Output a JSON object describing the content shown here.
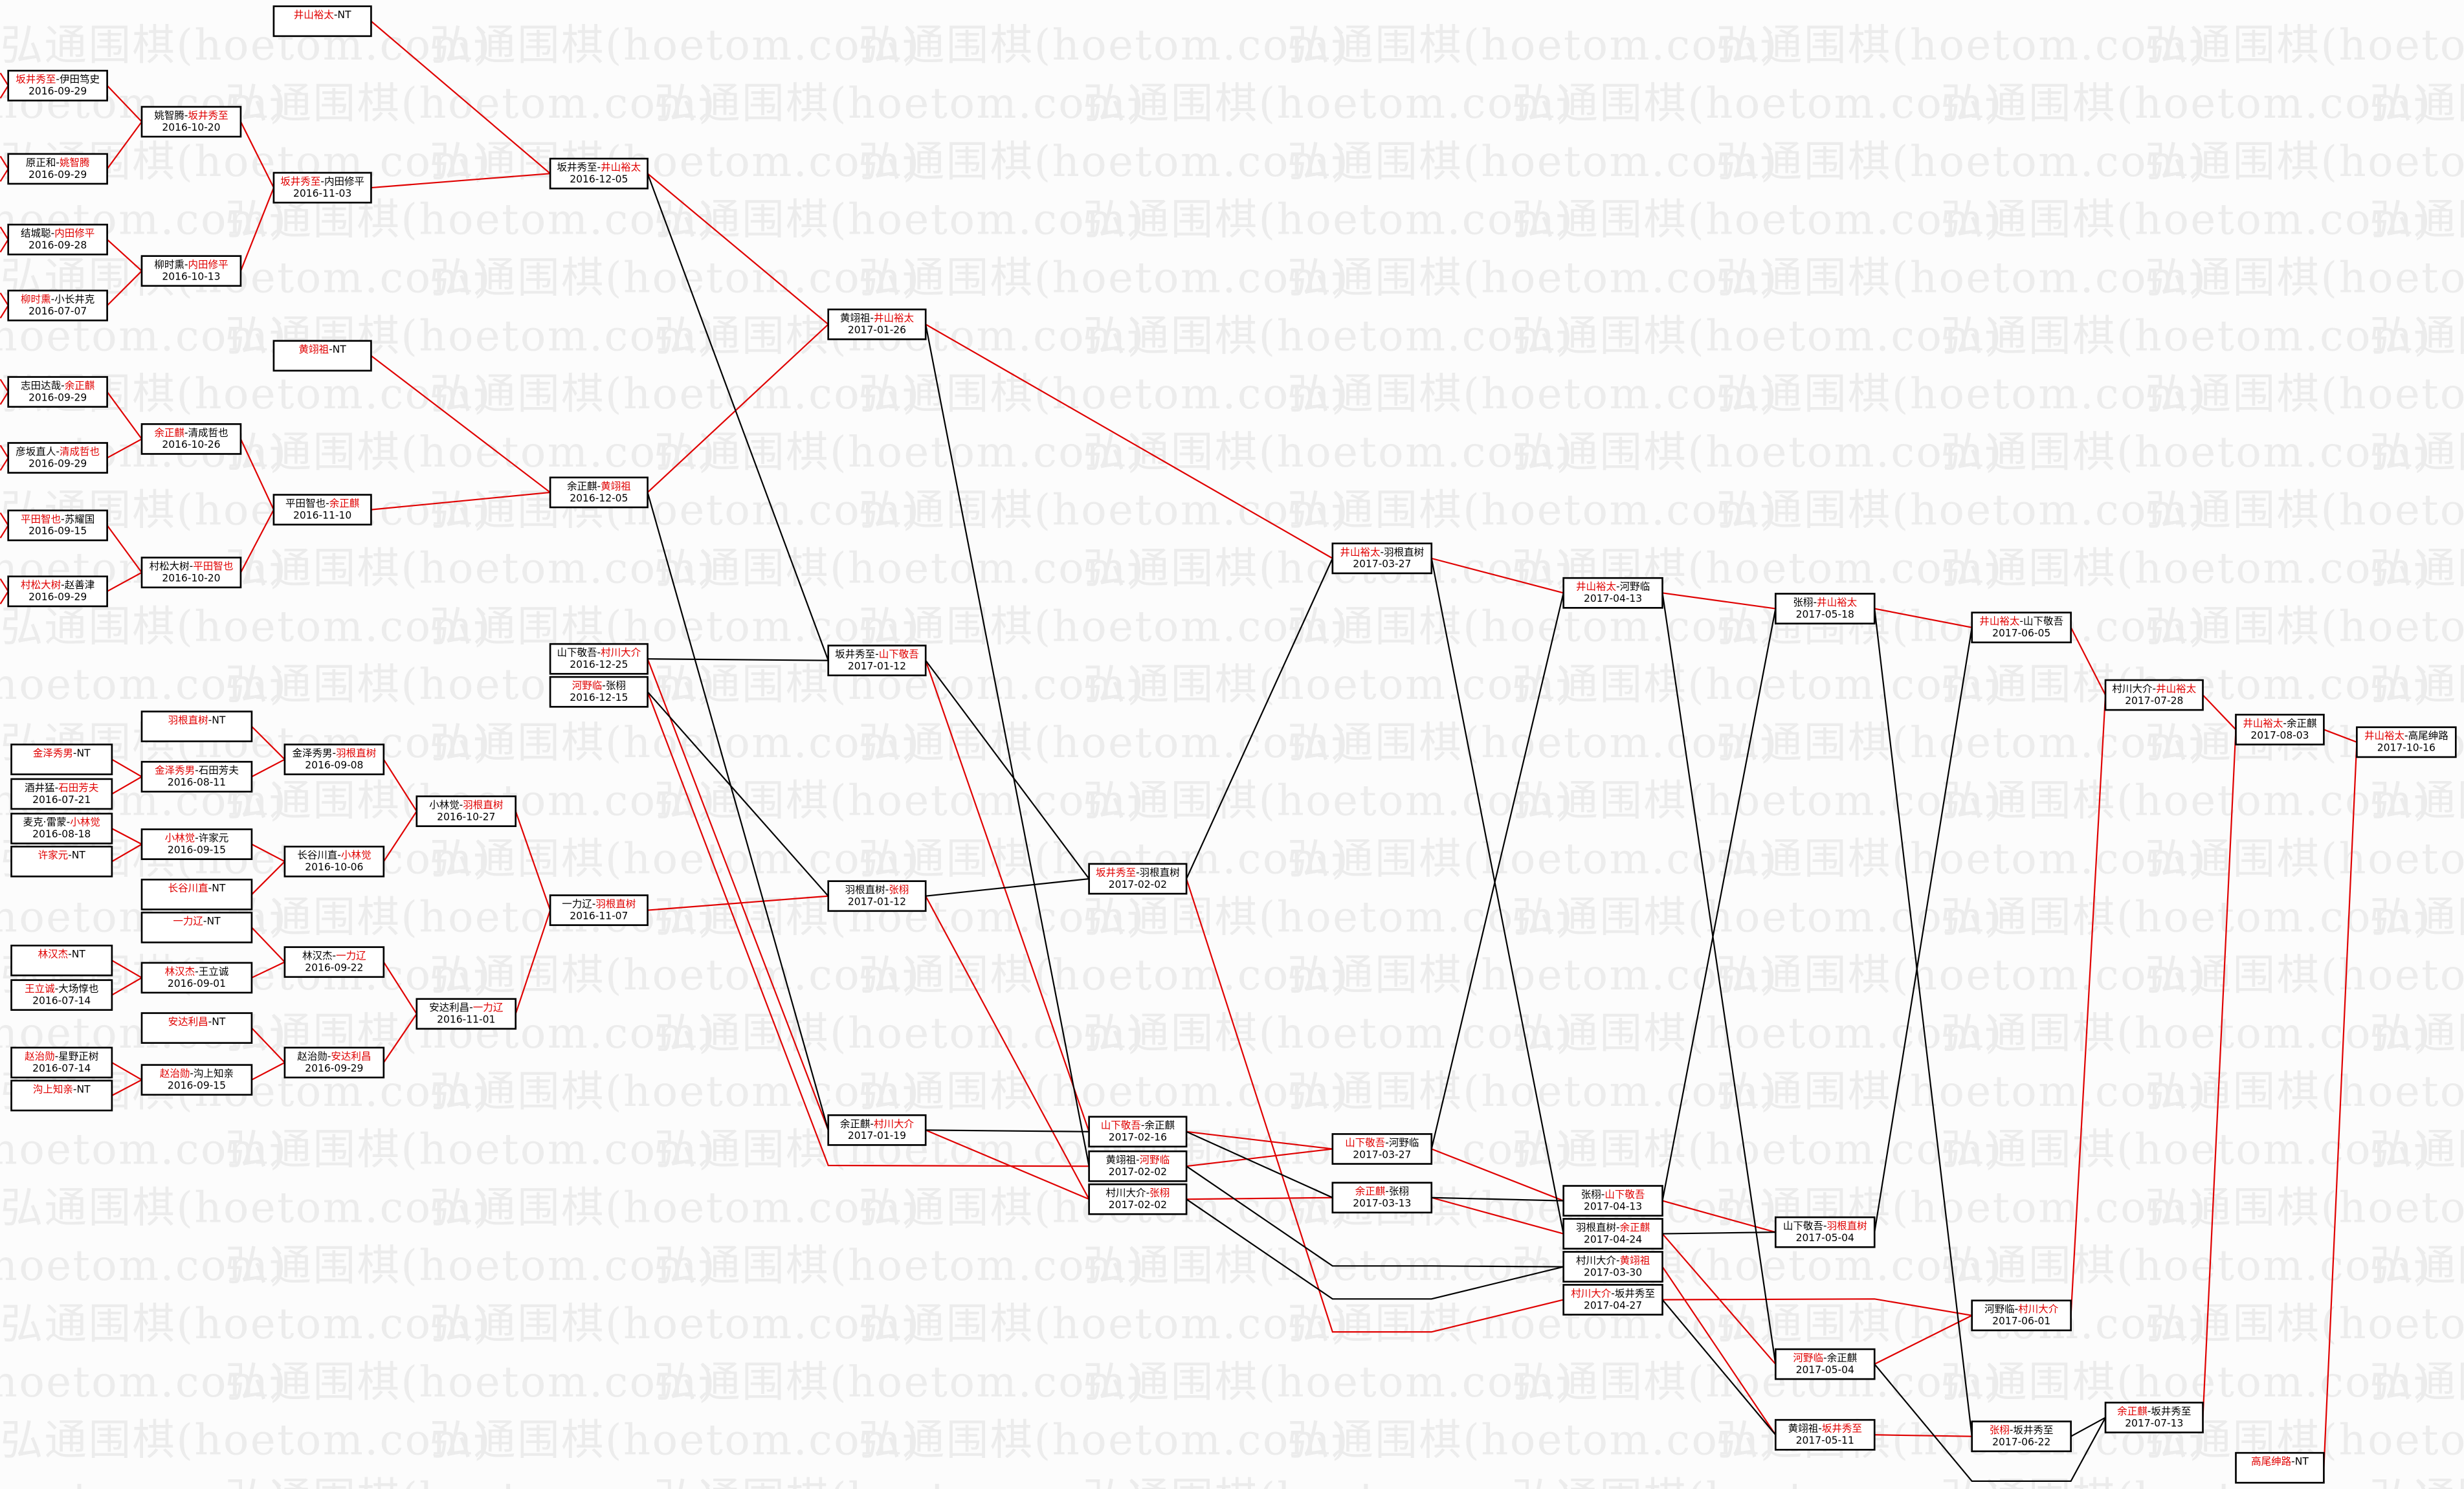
{
  "watermark": "弘通围棋(hoetom.com)",
  "separator": "-",
  "colors": {
    "winner": "#e00000",
    "winner_line": "#e00000",
    "loser_line": "#000000",
    "box_border": "#000000"
  },
  "nodes": [
    {
      "id": "A1",
      "p1": "坂井秀至",
      "p2": "伊田笃史",
      "winner": 1,
      "date": "2016-09-29"
    },
    {
      "id": "A2",
      "p1": "原正和",
      "p2": "姚智腾",
      "winner": 2,
      "date": "2016-09-29"
    },
    {
      "id": "A3",
      "p1": "结城聪",
      "p2": "内田修平",
      "winner": 2,
      "date": "2016-09-28"
    },
    {
      "id": "A4",
      "p1": "柳时熏",
      "p2": "小长井克",
      "winner": 1,
      "date": "2016-07-07"
    },
    {
      "id": "A5",
      "p1": "志田达哉",
      "p2": "余正麒",
      "winner": 2,
      "date": "2016-09-29"
    },
    {
      "id": "A6",
      "p1": "彦坂直人",
      "p2": "清成哲也",
      "winner": 2,
      "date": "2016-09-29"
    },
    {
      "id": "A7",
      "p1": "平田智也",
      "p2": "苏耀国",
      "winner": 1,
      "date": "2016-09-15"
    },
    {
      "id": "A8",
      "p1": "村松大树",
      "p2": "赵善津",
      "winner": 1,
      "date": "2016-09-29"
    },
    {
      "id": "B1",
      "p1": "金泽秀男",
      "p2": "NT",
      "winner": 1,
      "date": ""
    },
    {
      "id": "B2",
      "p1": "酒井猛",
      "p2": "石田芳夫",
      "winner": 2,
      "date": "2016-07-21"
    },
    {
      "id": "B3",
      "p1": "麦克·雷蒙",
      "p2": "小林觉",
      "winner": 2,
      "date": "2016-08-18"
    },
    {
      "id": "B4",
      "p1": "许家元",
      "p2": "NT",
      "winner": 1,
      "date": ""
    },
    {
      "id": "B5",
      "p1": "林汉杰",
      "p2": "NT",
      "winner": 1,
      "date": ""
    },
    {
      "id": "B6",
      "p1": "王立诚",
      "p2": "大场惇也",
      "winner": 1,
      "date": "2016-07-14"
    },
    {
      "id": "B7",
      "p1": "赵治勋",
      "p2": "星野正树",
      "winner": 1,
      "date": "2016-07-14"
    },
    {
      "id": "B8",
      "p1": "沟上知亲",
      "p2": "NT",
      "winner": 1,
      "date": ""
    },
    {
      "id": "C1",
      "p1": "姚智腾",
      "p2": "坂井秀至",
      "winner": 2,
      "date": "2016-10-20"
    },
    {
      "id": "C2",
      "p1": "柳时熏",
      "p2": "内田修平",
      "winner": 2,
      "date": "2016-10-13"
    },
    {
      "id": "C3",
      "p1": "余正麒",
      "p2": "清成哲也",
      "winner": 1,
      "date": "2016-10-26"
    },
    {
      "id": "C4",
      "p1": "村松大树",
      "p2": "平田智也",
      "winner": 2,
      "date": "2016-10-20"
    },
    {
      "id": "C5",
      "p1": "羽根直树",
      "p2": "NT",
      "winner": 1,
      "date": ""
    },
    {
      "id": "C6",
      "p1": "金泽秀男",
      "p2": "石田芳夫",
      "winner": 1,
      "date": "2016-08-11"
    },
    {
      "id": "C7",
      "p1": "小林觉",
      "p2": "许家元",
      "winner": 1,
      "date": "2016-09-15"
    },
    {
      "id": "C8",
      "p1": "长谷川直",
      "p2": "NT",
      "winner": 1,
      "date": ""
    },
    {
      "id": "C9",
      "p1": "一力辽",
      "p2": "NT",
      "winner": 1,
      "date": ""
    },
    {
      "id": "C10",
      "p1": "林汉杰",
      "p2": "王立诚",
      "winner": 1,
      "date": "2016-09-01"
    },
    {
      "id": "C11",
      "p1": "安达利昌",
      "p2": "NT",
      "winner": 1,
      "date": ""
    },
    {
      "id": "C12",
      "p1": "赵治勋",
      "p2": "沟上知亲",
      "winner": 1,
      "date": "2016-09-15"
    },
    {
      "id": "D1",
      "p1": "井山裕太",
      "p2": "NT",
      "winner": 1,
      "date": ""
    },
    {
      "id": "D2",
      "p1": "坂井秀至",
      "p2": "内田修平",
      "winner": 1,
      "date": "2016-11-03"
    },
    {
      "id": "D3",
      "p1": "黄翊祖",
      "p2": "NT",
      "winner": 1,
      "date": ""
    },
    {
      "id": "D4",
      "p1": "平田智也",
      "p2": "余正麒",
      "winner": 2,
      "date": "2016-11-10"
    },
    {
      "id": "D5",
      "p1": "金泽秀男",
      "p2": "羽根直树",
      "winner": 2,
      "date": "2016-09-08"
    },
    {
      "id": "D6",
      "p1": "长谷川直",
      "p2": "小林觉",
      "winner": 2,
      "date": "2016-10-06"
    },
    {
      "id": "D7",
      "p1": "林汉杰",
      "p2": "一力辽",
      "winner": 2,
      "date": "2016-09-22"
    },
    {
      "id": "D8",
      "p1": "赵治勋",
      "p2": "安达利昌",
      "winner": 2,
      "date": "2016-09-29"
    },
    {
      "id": "E1",
      "p1": "小林觉",
      "p2": "羽根直树",
      "winner": 2,
      "date": "2016-10-27"
    },
    {
      "id": "E2",
      "p1": "安达利昌",
      "p2": "一力辽",
      "winner": 2,
      "date": "2016-11-01"
    },
    {
      "id": "F1",
      "p1": "坂井秀至",
      "p2": "井山裕太",
      "winner": 2,
      "date": "2016-12-05"
    },
    {
      "id": "F2",
      "p1": "余正麒",
      "p2": "黄翊祖",
      "winner": 2,
      "date": "2016-12-05"
    },
    {
      "id": "F3",
      "p1": "山下敬吾",
      "p2": "村川大介",
      "winner": 2,
      "date": "2016-12-25"
    },
    {
      "id": "F4",
      "p1": "河野临",
      "p2": "张栩",
      "winner": 1,
      "date": "2016-12-15"
    },
    {
      "id": "F5",
      "p1": "一力辽",
      "p2": "羽根直树",
      "winner": 2,
      "date": "2016-11-07"
    },
    {
      "id": "G1",
      "p1": "黄翊祖",
      "p2": "井山裕太",
      "winner": 2,
      "date": "2017-01-26"
    },
    {
      "id": "G2",
      "p1": "坂井秀至",
      "p2": "山下敬吾",
      "winner": 2,
      "date": "2017-01-12"
    },
    {
      "id": "G3",
      "p1": "羽根直树",
      "p2": "张栩",
      "winner": 2,
      "date": "2017-01-12"
    },
    {
      "id": "G4",
      "p1": "余正麒",
      "p2": "村川大介",
      "winner": 2,
      "date": "2017-01-19"
    },
    {
      "id": "H1",
      "p1": "坂井秀至",
      "p2": "羽根直树",
      "winner": 1,
      "date": "2017-02-02"
    },
    {
      "id": "H2",
      "p1": "山下敬吾",
      "p2": "余正麒",
      "winner": 1,
      "date": "2017-02-16"
    },
    {
      "id": "H3",
      "p1": "黄翊祖",
      "p2": "河野临",
      "winner": 2,
      "date": "2017-02-02"
    },
    {
      "id": "H4",
      "p1": "村川大介",
      "p2": "张栩",
      "winner": 2,
      "date": "2017-02-02"
    },
    {
      "id": "I1",
      "p1": "井山裕太",
      "p2": "羽根直树",
      "winner": 1,
      "date": "2017-03-27"
    },
    {
      "id": "I2",
      "p1": "山下敬吾",
      "p2": "河野临",
      "winner": 1,
      "date": "2017-03-27"
    },
    {
      "id": "I3",
      "p1": "余正麒",
      "p2": "张栩",
      "winner": 1,
      "date": "2017-03-13"
    },
    {
      "id": "J1",
      "p1": "井山裕太",
      "p2": "河野临",
      "winner": 1,
      "date": "2017-04-13"
    },
    {
      "id": "J2",
      "p1": "张栩",
      "p2": "山下敬吾",
      "winner": 2,
      "date": "2017-04-13"
    },
    {
      "id": "J3",
      "p1": "羽根直树",
      "p2": "余正麒",
      "winner": 2,
      "date": "2017-04-24"
    },
    {
      "id": "J4",
      "p1": "村川大介",
      "p2": "黄翊祖",
      "winner": 2,
      "date": "2017-03-30"
    },
    {
      "id": "J5",
      "p1": "村川大介",
      "p2": "坂井秀至",
      "winner": 1,
      "date": "2017-04-27"
    },
    {
      "id": "K1",
      "p1": "张栩",
      "p2": "井山裕太",
      "winner": 2,
      "date": "2017-05-18"
    },
    {
      "id": "K2",
      "p1": "山下敬吾",
      "p2": "羽根直树",
      "winner": 2,
      "date": "2017-05-04"
    },
    {
      "id": "K3",
      "p1": "河野临",
      "p2": "余正麒",
      "winner": 1,
      "date": "2017-05-04"
    },
    {
      "id": "K4",
      "p1": "黄翊祖",
      "p2": "坂井秀至",
      "winner": 2,
      "date": "2017-05-11"
    },
    {
      "id": "L1",
      "p1": "井山裕太",
      "p2": "山下敬吾",
      "winner": 1,
      "date": "2017-06-05"
    },
    {
      "id": "L2",
      "p1": "河野临",
      "p2": "村川大介",
      "winner": 2,
      "date": "2017-06-01"
    },
    {
      "id": "L3",
      "p1": "张栩",
      "p2": "坂井秀至",
      "winner": 1,
      "date": "2017-06-22"
    },
    {
      "id": "M1",
      "p1": "村川大介",
      "p2": "井山裕太",
      "winner": 2,
      "date": "2017-07-28"
    },
    {
      "id": "M2",
      "p1": "余正麒",
      "p2": "坂井秀至",
      "winner": 1,
      "date": "2017-07-13"
    },
    {
      "id": "N1",
      "p1": "井山裕太",
      "p2": "余正麒",
      "winner": 1,
      "date": "2017-08-03"
    },
    {
      "id": "N2",
      "p1": "高尾绅路",
      "p2": "NT",
      "winner": 1,
      "date": ""
    },
    {
      "id": "O1",
      "p1": "井山裕太",
      "p2": "高尾绅路",
      "winner": 1,
      "date": "2017-10-16"
    }
  ],
  "edges": [
    [
      "A1",
      "C1",
      "red"
    ],
    [
      "A2",
      "C1",
      "red"
    ],
    [
      "A3",
      "C2",
      "red"
    ],
    [
      "A4",
      "C2",
      "red"
    ],
    [
      "C1",
      "D2",
      "red"
    ],
    [
      "C2",
      "D2",
      "red"
    ],
    [
      "D1",
      "F1",
      "red"
    ],
    [
      "D2",
      "F1",
      "red"
    ],
    [
      "A5",
      "C3",
      "red"
    ],
    [
      "A6",
      "C3",
      "red"
    ],
    [
      "A7",
      "C4",
      "red"
    ],
    [
      "A8",
      "C4",
      "red"
    ],
    [
      "C3",
      "D4",
      "red"
    ],
    [
      "C4",
      "D4",
      "red"
    ],
    [
      "D3",
      "F2",
      "red"
    ],
    [
      "D4",
      "F2",
      "red"
    ],
    [
      "F1",
      "G1",
      "red"
    ],
    [
      "F2",
      "G1",
      "red"
    ],
    [
      "G1",
      "I1",
      "red"
    ],
    [
      "C5",
      "D5",
      "red"
    ],
    [
      "B1",
      "C6",
      "red"
    ],
    [
      "B2",
      "C6",
      "red"
    ],
    [
      "C6",
      "D5",
      "red"
    ],
    [
      "B3",
      "C7",
      "red"
    ],
    [
      "B4",
      "C7",
      "red"
    ],
    [
      "C7",
      "D6",
      "red"
    ],
    [
      "C8",
      "D6",
      "red"
    ],
    [
      "D5",
      "E1",
      "red"
    ],
    [
      "D6",
      "E1",
      "red"
    ],
    [
      "C9",
      "D7",
      "red"
    ],
    [
      "B5",
      "C10",
      "red"
    ],
    [
      "B6",
      "C10",
      "red"
    ],
    [
      "C10",
      "D7",
      "red"
    ],
    [
      "C11",
      "D8",
      "red"
    ],
    [
      "B7",
      "C12",
      "red"
    ],
    [
      "B8",
      "C12",
      "red"
    ],
    [
      "C12",
      "D8",
      "red"
    ],
    [
      "D7",
      "E2",
      "red"
    ],
    [
      "D8",
      "E2",
      "red"
    ],
    [
      "E1",
      "F5",
      "red"
    ],
    [
      "E2",
      "F5",
      "red"
    ],
    [
      "F5",
      "G3",
      "red"
    ],
    [
      "F3",
      "G4",
      "red"
    ],
    [
      "F4",
      "H3",
      "red"
    ],
    [
      "G2",
      "H2",
      "red"
    ],
    [
      "G3",
      "H4",
      "red"
    ],
    [
      "G4",
      "H4",
      "red"
    ],
    [
      "H1",
      "J5",
      "red"
    ],
    [
      "H2",
      "I2",
      "red"
    ],
    [
      "H3",
      "I2",
      "red"
    ],
    [
      "H4",
      "I3",
      "red"
    ],
    [
      "I1",
      "J1",
      "red"
    ],
    [
      "I2",
      "J2",
      "red"
    ],
    [
      "I3",
      "J3",
      "red"
    ],
    [
      "J1",
      "K1",
      "red"
    ],
    [
      "J2",
      "K2",
      "red"
    ],
    [
      "J3",
      "K3",
      "red"
    ],
    [
      "J4",
      "K4",
      "red"
    ],
    [
      "J5",
      "L2",
      "red"
    ],
    [
      "K1",
      "L1",
      "red"
    ],
    [
      "K3",
      "L2",
      "red"
    ],
    [
      "K4",
      "L3",
      "red"
    ],
    [
      "L1",
      "M1",
      "red"
    ],
    [
      "L2",
      "M1",
      "red"
    ],
    [
      "M1",
      "N1",
      "red"
    ],
    [
      "M2",
      "N1",
      "red"
    ],
    [
      "N1",
      "O1",
      "red"
    ],
    [
      "N2",
      "O1",
      "red"
    ],
    [
      "F1",
      "G2",
      "black"
    ],
    [
      "F3",
      "G2",
      "black"
    ],
    [
      "F2",
      "G4",
      "black"
    ],
    [
      "F4",
      "G3",
      "black"
    ],
    [
      "G1",
      "H3",
      "black"
    ],
    [
      "G2",
      "H1",
      "black"
    ],
    [
      "G3",
      "H1",
      "black"
    ],
    [
      "G4",
      "H2",
      "black"
    ],
    [
      "H1",
      "I1",
      "black"
    ],
    [
      "H2",
      "I3",
      "black"
    ],
    [
      "H3",
      "J4",
      "black"
    ],
    [
      "H4",
      "J4",
      "black"
    ],
    [
      "I1",
      "J3",
      "black"
    ],
    [
      "I2",
      "J1",
      "black"
    ],
    [
      "I3",
      "J2",
      "black"
    ],
    [
      "J1",
      "K3",
      "black"
    ],
    [
      "J2",
      "K1",
      "black"
    ],
    [
      "J3",
      "K2",
      "black"
    ],
    [
      "J5",
      "K4",
      "black"
    ],
    [
      "K1",
      "L3",
      "black"
    ],
    [
      "K2",
      "L1",
      "black"
    ],
    [
      "K3",
      "M2",
      "black"
    ],
    [
      "L3",
      "M2",
      "black"
    ]
  ],
  "incoming_from_offscreen": [
    "A1",
    "A2",
    "A3",
    "A4",
    "A5",
    "A6",
    "A7",
    "A8"
  ]
}
